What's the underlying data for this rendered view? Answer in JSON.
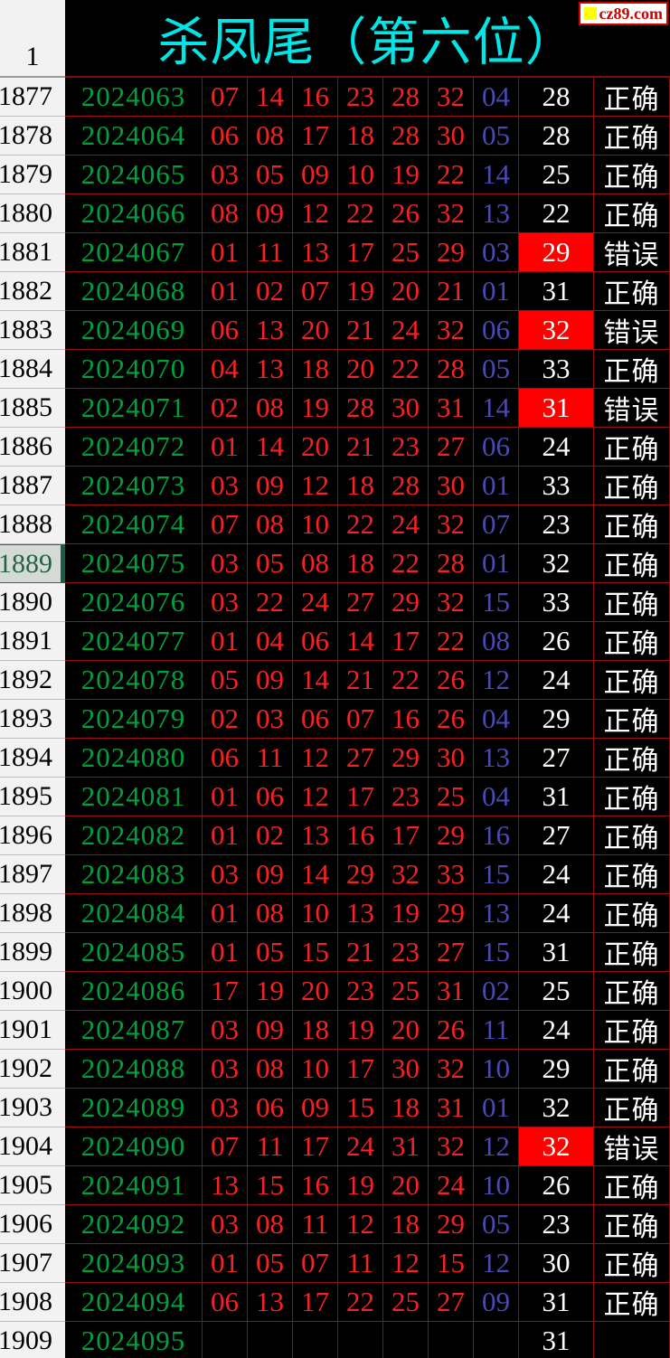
{
  "header": {
    "corner_label": "1",
    "title": "杀凤尾（第六位）",
    "logo_text": "cz89.com"
  },
  "status_labels": {
    "correct": "正确",
    "wrong": "错误"
  },
  "colors": {
    "title_cyan": "#00e6e6",
    "period_green": "#00a03c",
    "red_ball": "#f42222",
    "blue_ball": "#4a4ab2",
    "grid_red": "#9c1010",
    "highlight_red": "#ff0000",
    "logo_red": "#cf0000",
    "logo_yellow": "#ffff00"
  },
  "table": {
    "rows": [
      {
        "index": "1877",
        "period": "2024063",
        "reds": [
          "07",
          "14",
          "16",
          "23",
          "28",
          "32"
        ],
        "blue": "04",
        "prediction": "28",
        "status": "正确",
        "highlight": false,
        "selected": false
      },
      {
        "index": "1878",
        "period": "2024064",
        "reds": [
          "06",
          "08",
          "17",
          "18",
          "28",
          "30"
        ],
        "blue": "05",
        "prediction": "28",
        "status": "正确",
        "highlight": false,
        "selected": false
      },
      {
        "index": "1879",
        "period": "2024065",
        "reds": [
          "03",
          "05",
          "09",
          "10",
          "19",
          "22"
        ],
        "blue": "14",
        "prediction": "25",
        "status": "正确",
        "highlight": false,
        "selected": false
      },
      {
        "index": "1880",
        "period": "2024066",
        "reds": [
          "08",
          "09",
          "12",
          "22",
          "26",
          "32"
        ],
        "blue": "13",
        "prediction": "22",
        "status": "正确",
        "highlight": false,
        "selected": false
      },
      {
        "index": "1881",
        "period": "2024067",
        "reds": [
          "01",
          "11",
          "13",
          "17",
          "25",
          "29"
        ],
        "blue": "03",
        "prediction": "29",
        "status": "错误",
        "highlight": true,
        "selected": false
      },
      {
        "index": "1882",
        "period": "2024068",
        "reds": [
          "01",
          "02",
          "07",
          "19",
          "20",
          "21"
        ],
        "blue": "01",
        "prediction": "31",
        "status": "正确",
        "highlight": false,
        "selected": false
      },
      {
        "index": "1883",
        "period": "2024069",
        "reds": [
          "06",
          "13",
          "20",
          "21",
          "24",
          "32"
        ],
        "blue": "06",
        "prediction": "32",
        "status": "错误",
        "highlight": true,
        "selected": false
      },
      {
        "index": "1884",
        "period": "2024070",
        "reds": [
          "04",
          "13",
          "18",
          "20",
          "22",
          "28"
        ],
        "blue": "05",
        "prediction": "33",
        "status": "正确",
        "highlight": false,
        "selected": false
      },
      {
        "index": "1885",
        "period": "2024071",
        "reds": [
          "02",
          "08",
          "19",
          "28",
          "30",
          "31"
        ],
        "blue": "14",
        "prediction": "31",
        "status": "错误",
        "highlight": true,
        "selected": false
      },
      {
        "index": "1886",
        "period": "2024072",
        "reds": [
          "01",
          "14",
          "20",
          "21",
          "23",
          "27"
        ],
        "blue": "06",
        "prediction": "24",
        "status": "正确",
        "highlight": false,
        "selected": false
      },
      {
        "index": "1887",
        "period": "2024073",
        "reds": [
          "03",
          "09",
          "12",
          "18",
          "28",
          "30"
        ],
        "blue": "01",
        "prediction": "33",
        "status": "正确",
        "highlight": false,
        "selected": false
      },
      {
        "index": "1888",
        "period": "2024074",
        "reds": [
          "07",
          "08",
          "10",
          "22",
          "24",
          "32"
        ],
        "blue": "07",
        "prediction": "23",
        "status": "正确",
        "highlight": false,
        "selected": false
      },
      {
        "index": "1889",
        "period": "2024075",
        "reds": [
          "03",
          "05",
          "08",
          "18",
          "22",
          "28"
        ],
        "blue": "01",
        "prediction": "32",
        "status": "正确",
        "highlight": false,
        "selected": true
      },
      {
        "index": "1890",
        "period": "2024076",
        "reds": [
          "03",
          "22",
          "24",
          "27",
          "29",
          "32"
        ],
        "blue": "15",
        "prediction": "33",
        "status": "正确",
        "highlight": false,
        "selected": false
      },
      {
        "index": "1891",
        "period": "2024077",
        "reds": [
          "01",
          "04",
          "06",
          "14",
          "17",
          "22"
        ],
        "blue": "08",
        "prediction": "26",
        "status": "正确",
        "highlight": false,
        "selected": false
      },
      {
        "index": "1892",
        "period": "2024078",
        "reds": [
          "05",
          "09",
          "14",
          "21",
          "22",
          "26"
        ],
        "blue": "12",
        "prediction": "24",
        "status": "正确",
        "highlight": false,
        "selected": false
      },
      {
        "index": "1893",
        "period": "2024079",
        "reds": [
          "02",
          "03",
          "06",
          "07",
          "16",
          "26"
        ],
        "blue": "04",
        "prediction": "29",
        "status": "正确",
        "highlight": false,
        "selected": false
      },
      {
        "index": "1894",
        "period": "2024080",
        "reds": [
          "06",
          "11",
          "12",
          "27",
          "29",
          "30"
        ],
        "blue": "13",
        "prediction": "27",
        "status": "正确",
        "highlight": false,
        "selected": false
      },
      {
        "index": "1895",
        "period": "2024081",
        "reds": [
          "01",
          "06",
          "12",
          "17",
          "23",
          "25"
        ],
        "blue": "04",
        "prediction": "31",
        "status": "正确",
        "highlight": false,
        "selected": false
      },
      {
        "index": "1896",
        "period": "2024082",
        "reds": [
          "01",
          "02",
          "13",
          "16",
          "17",
          "29"
        ],
        "blue": "16",
        "prediction": "27",
        "status": "正确",
        "highlight": false,
        "selected": false
      },
      {
        "index": "1897",
        "period": "2024083",
        "reds": [
          "03",
          "09",
          "14",
          "29",
          "32",
          "33"
        ],
        "blue": "15",
        "prediction": "24",
        "status": "正确",
        "highlight": false,
        "selected": false
      },
      {
        "index": "1898",
        "period": "2024084",
        "reds": [
          "01",
          "08",
          "10",
          "13",
          "19",
          "29"
        ],
        "blue": "13",
        "prediction": "24",
        "status": "正确",
        "highlight": false,
        "selected": false
      },
      {
        "index": "1899",
        "period": "2024085",
        "reds": [
          "01",
          "05",
          "15",
          "21",
          "23",
          "27"
        ],
        "blue": "15",
        "prediction": "31",
        "status": "正确",
        "highlight": false,
        "selected": false
      },
      {
        "index": "1900",
        "period": "2024086",
        "reds": [
          "17",
          "19",
          "20",
          "23",
          "25",
          "31"
        ],
        "blue": "02",
        "prediction": "25",
        "status": "正确",
        "highlight": false,
        "selected": false
      },
      {
        "index": "1901",
        "period": "2024087",
        "reds": [
          "03",
          "09",
          "18",
          "19",
          "20",
          "26"
        ],
        "blue": "11",
        "prediction": "24",
        "status": "正确",
        "highlight": false,
        "selected": false
      },
      {
        "index": "1902",
        "period": "2024088",
        "reds": [
          "03",
          "08",
          "10",
          "17",
          "30",
          "32"
        ],
        "blue": "10",
        "prediction": "29",
        "status": "正确",
        "highlight": false,
        "selected": false
      },
      {
        "index": "1903",
        "period": "2024089",
        "reds": [
          "03",
          "06",
          "09",
          "15",
          "18",
          "31"
        ],
        "blue": "01",
        "prediction": "32",
        "status": "正确",
        "highlight": false,
        "selected": false
      },
      {
        "index": "1904",
        "period": "2024090",
        "reds": [
          "07",
          "11",
          "17",
          "24",
          "31",
          "32"
        ],
        "blue": "12",
        "prediction": "32",
        "status": "错误",
        "highlight": true,
        "selected": false
      },
      {
        "index": "1905",
        "period": "2024091",
        "reds": [
          "13",
          "15",
          "16",
          "19",
          "20",
          "24"
        ],
        "blue": "10",
        "prediction": "26",
        "status": "正确",
        "highlight": false,
        "selected": false
      },
      {
        "index": "1906",
        "period": "2024092",
        "reds": [
          "03",
          "08",
          "11",
          "12",
          "18",
          "29"
        ],
        "blue": "05",
        "prediction": "23",
        "status": "正确",
        "highlight": false,
        "selected": false
      },
      {
        "index": "1907",
        "period": "2024093",
        "reds": [
          "01",
          "05",
          "07",
          "11",
          "12",
          "15"
        ],
        "blue": "12",
        "prediction": "30",
        "status": "正确",
        "highlight": false,
        "selected": false
      },
      {
        "index": "1908",
        "period": "2024094",
        "reds": [
          "06",
          "13",
          "17",
          "22",
          "25",
          "27"
        ],
        "blue": "09",
        "prediction": "31",
        "status": "正确",
        "highlight": false,
        "selected": false
      },
      {
        "index": "1909",
        "period": "2024095",
        "reds": [
          "",
          "",
          "",
          "",
          "",
          ""
        ],
        "blue": "",
        "prediction": "31",
        "status": "",
        "highlight": false,
        "selected": false
      }
    ]
  }
}
